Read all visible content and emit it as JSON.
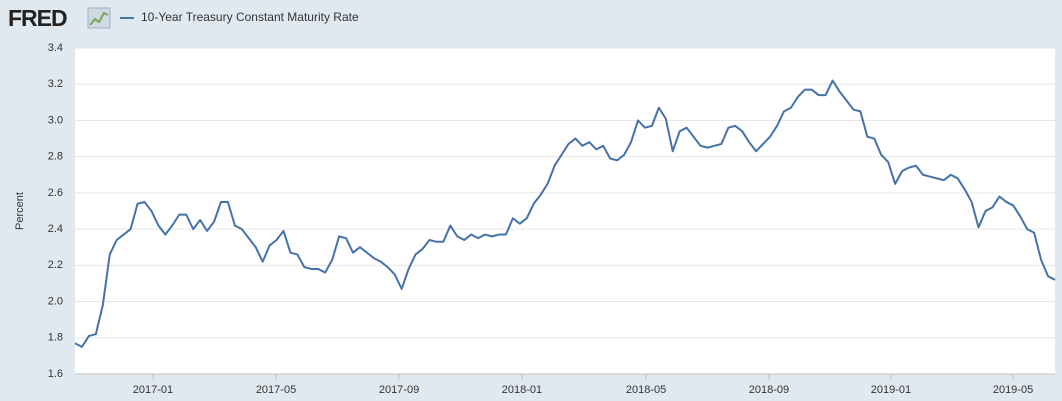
{
  "logo": "FRED",
  "chart_data": {
    "type": "line",
    "y_label": "Percent",
    "series": [
      {
        "name": "10-Year Treasury Constant Maturity Rate",
        "color": "#4572a7",
        "values": [
          1.77,
          1.75,
          1.81,
          1.82,
          1.98,
          2.26,
          2.34,
          2.37,
          2.4,
          2.54,
          2.55,
          2.5,
          2.42,
          2.37,
          2.42,
          2.48,
          2.48,
          2.4,
          2.45,
          2.39,
          2.44,
          2.55,
          2.55,
          2.42,
          2.4,
          2.35,
          2.3,
          2.22,
          2.31,
          2.34,
          2.39,
          2.27,
          2.26,
          2.19,
          2.18,
          2.18,
          2.16,
          2.23,
          2.36,
          2.35,
          2.27,
          2.3,
          2.27,
          2.24,
          2.22,
          2.19,
          2.15,
          2.07,
          2.18,
          2.26,
          2.29,
          2.34,
          2.33,
          2.33,
          2.42,
          2.36,
          2.34,
          2.37,
          2.35,
          2.37,
          2.36,
          2.37,
          2.37,
          2.46,
          2.43,
          2.46,
          2.54,
          2.59,
          2.65,
          2.75,
          2.81,
          2.87,
          2.9,
          2.86,
          2.88,
          2.84,
          2.86,
          2.79,
          2.78,
          2.81,
          2.88,
          3.0,
          2.96,
          2.97,
          3.07,
          3.01,
          2.83,
          2.94,
          2.96,
          2.91,
          2.86,
          2.85,
          2.86,
          2.87,
          2.96,
          2.97,
          2.94,
          2.88,
          2.83,
          2.87,
          2.91,
          2.97,
          3.05,
          3.07,
          3.13,
          3.17,
          3.17,
          3.14,
          3.14,
          3.22,
          3.16,
          3.11,
          3.06,
          3.05,
          2.91,
          2.9,
          2.81,
          2.77,
          2.65,
          2.72,
          2.74,
          2.75,
          2.7,
          2.69,
          2.68,
          2.67,
          2.7,
          2.68,
          2.62,
          2.55,
          2.41,
          2.5,
          2.52,
          2.58,
          2.55,
          2.53,
          2.47,
          2.4,
          2.38,
          2.23,
          2.14,
          2.12
        ]
      }
    ],
    "xlim": [
      0,
      141
    ],
    "xticks": [
      {
        "value": 11.22,
        "label": "2017-01"
      },
      {
        "value": 28.92,
        "label": "2017-05"
      },
      {
        "value": 46.62,
        "label": "2017-09"
      },
      {
        "value": 64.31,
        "label": "2018-01"
      },
      {
        "value": 82.16,
        "label": "2018-05"
      },
      {
        "value": 99.85,
        "label": "2018-09"
      },
      {
        "value": 117.4,
        "label": "2019-01"
      },
      {
        "value": 134.96,
        "label": "2019-05"
      }
    ],
    "ylim": [
      1.6,
      3.4
    ],
    "yticks": [
      1.6,
      1.8,
      {
        "value": 2.0,
        "label": "2.0"
      },
      2.2,
      2.4,
      2.6,
      2.8,
      {
        "value": 3.0,
        "label": "3.0"
      },
      3.2,
      3.4
    ],
    "grid": true
  }
}
